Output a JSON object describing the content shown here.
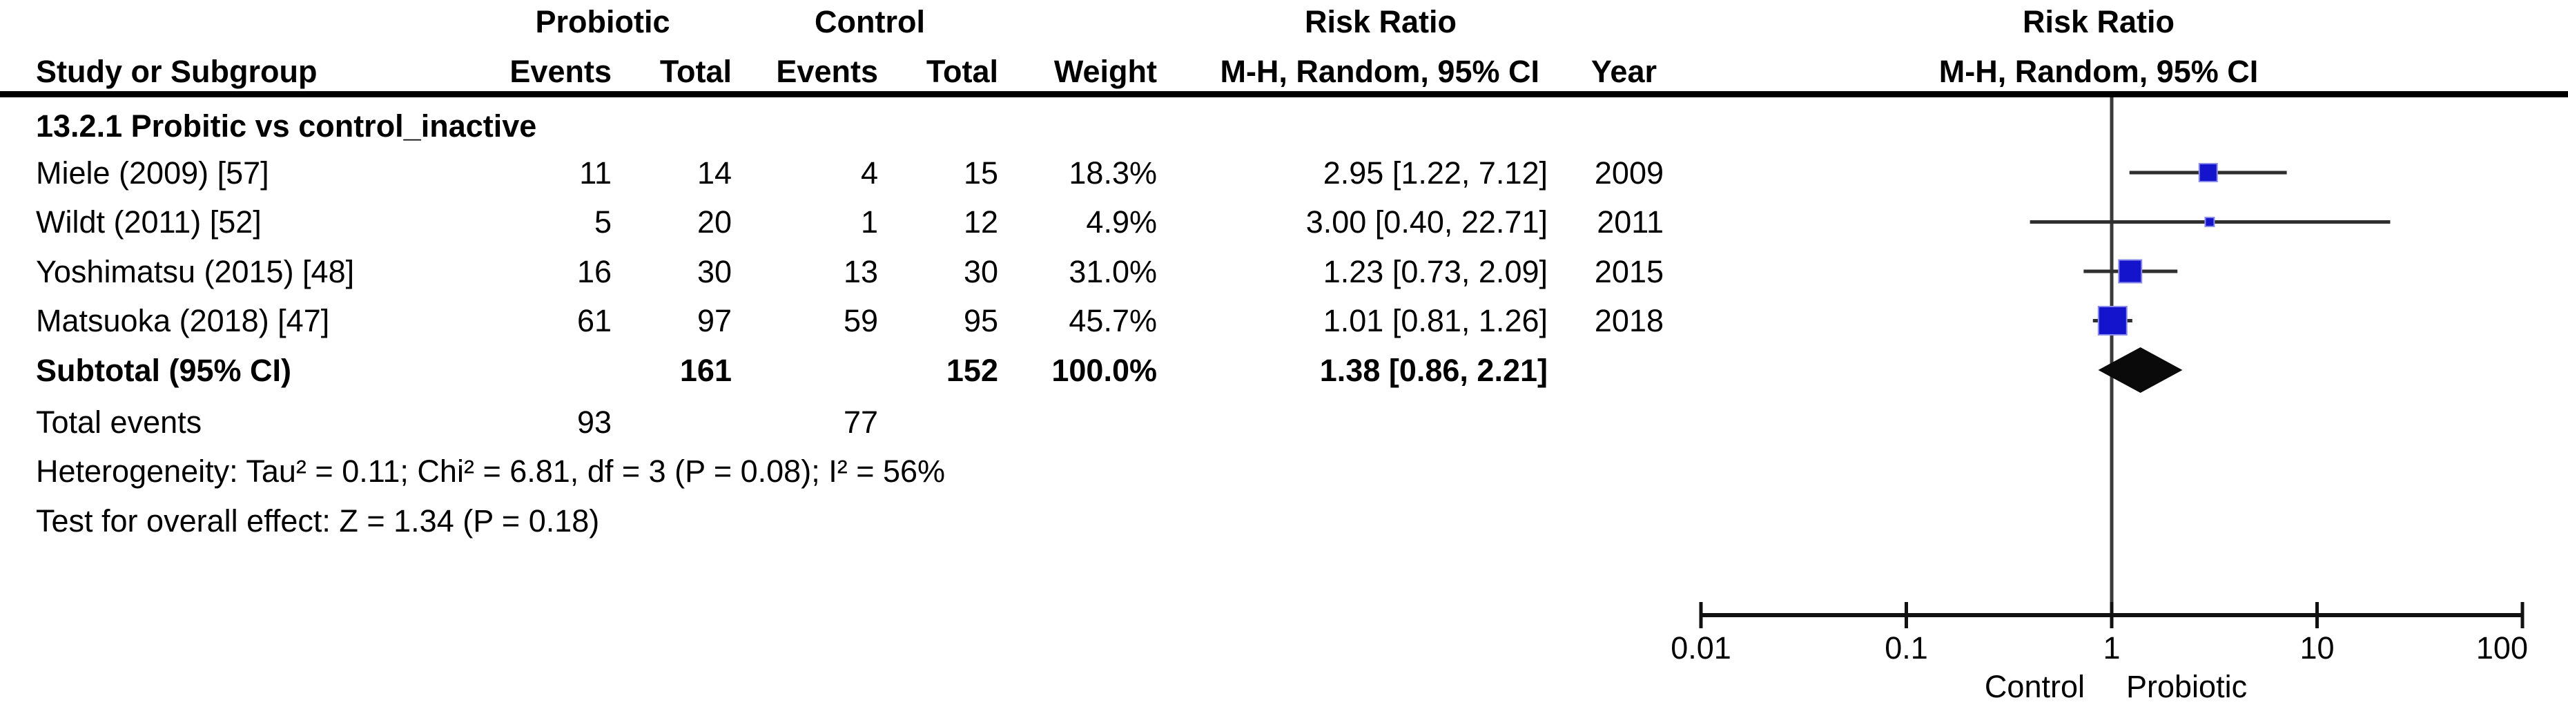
{
  "colors": {
    "marker_blue": "#1414CC",
    "marker_blue_edge": "#8c8cea",
    "ci_line": "#2f2f2f",
    "diamond_black": "#0a0a0a",
    "axis_black": "#111111",
    "null_line_gray": "#3a3a3a"
  },
  "header": {
    "group_probiotic": "Probiotic",
    "group_control": "Control",
    "risk_ratio_left": "Risk Ratio",
    "risk_ratio_right": "Risk Ratio",
    "study": "Study or Subgroup",
    "events1": "Events",
    "total1": "Total",
    "events2": "Events",
    "total2": "Total",
    "weight": "Weight",
    "mh_ci_left": "M-H, Random, 95% CI",
    "year": "Year",
    "mh_ci_right": "M-H, Random, 95% CI"
  },
  "subgroup_heading": "13.2.1 Probitic vs control_inactive",
  "rows": [
    {
      "name": "Miele (2009) [57]",
      "events1": "11",
      "total1": "14",
      "events2": "4",
      "total2": "15",
      "weight": "18.3%",
      "ci_text": "2.95 [1.22, 7.12]",
      "year": "2009"
    },
    {
      "name": "Wildt (2011) [52]",
      "events1": "5",
      "total1": "20",
      "events2": "1",
      "total2": "12",
      "weight": "4.9%",
      "ci_text": "3.00 [0.40, 22.71]",
      "year": "2011"
    },
    {
      "name": "Yoshimatsu (2015) [48]",
      "events1": "16",
      "total1": "30",
      "events2": "13",
      "total2": "30",
      "weight": "31.0%",
      "ci_text": "1.23 [0.73, 2.09]",
      "year": "2015"
    },
    {
      "name": "Matsuoka (2018) [47]",
      "events1": "61",
      "total1": "97",
      "events2": "59",
      "total2": "95",
      "weight": "45.7%",
      "ci_text": "1.01 [0.81, 1.26]",
      "year": "2018"
    }
  ],
  "subtotal_row": {
    "label": "Subtotal (95% CI)",
    "total1": "161",
    "total2": "152",
    "weight": "100.0%",
    "ci_text": "1.38 [0.86, 2.21]"
  },
  "total_events_row": {
    "label": "Total events",
    "events1": "93",
    "events2": "77"
  },
  "heterogeneity_text": "Heterogeneity: Tau² = 0.11; Chi² = 6.81, df = 3 (P = 0.08); I² = 56%",
  "overall_effect_text": "Test for overall effect: Z = 1.34 (P = 0.18)",
  "axis": {
    "tick_labels": [
      "0.01",
      "0.1",
      "1",
      "10",
      "100"
    ],
    "label_left": "Control",
    "label_right": "Probiotic"
  },
  "chart_data": {
    "type": "forest",
    "effect_measure": "Risk Ratio",
    "method": "M-H, Random, 95% CI",
    "x_scale": "log10",
    "x_ticks": [
      0.01,
      0.1,
      1,
      10,
      100
    ],
    "x_axis_labels": {
      "left": "Control",
      "right": "Probiotic"
    },
    "subgroup": "13.2.1 Probitic vs control_inactive",
    "studies": [
      {
        "study": "Miele (2009) [57]",
        "probiotic_events": 11,
        "probiotic_total": 14,
        "control_events": 4,
        "control_total": 15,
        "weight_pct": 18.3,
        "rr": 2.95,
        "ci_low": 1.22,
        "ci_high": 7.12,
        "year": 2009
      },
      {
        "study": "Wildt (2011) [52]",
        "probiotic_events": 5,
        "probiotic_total": 20,
        "control_events": 1,
        "control_total": 12,
        "weight_pct": 4.9,
        "rr": 3.0,
        "ci_low": 0.4,
        "ci_high": 22.71,
        "year": 2011
      },
      {
        "study": "Yoshimatsu (2015) [48]",
        "probiotic_events": 16,
        "probiotic_total": 30,
        "control_events": 13,
        "control_total": 30,
        "weight_pct": 31.0,
        "rr": 1.23,
        "ci_low": 0.73,
        "ci_high": 2.09,
        "year": 2015
      },
      {
        "study": "Matsuoka (2018) [47]",
        "probiotic_events": 61,
        "probiotic_total": 97,
        "control_events": 59,
        "control_total": 95,
        "weight_pct": 45.7,
        "rr": 1.01,
        "ci_low": 0.81,
        "ci_high": 1.26,
        "year": 2018
      }
    ],
    "subtotal": {
      "label": "Subtotal (95% CI)",
      "probiotic_total": 161,
      "control_total": 152,
      "weight_pct": 100.0,
      "rr": 1.38,
      "ci_low": 0.86,
      "ci_high": 2.21
    },
    "total_events": {
      "probiotic": 93,
      "control": 77
    },
    "heterogeneity": {
      "tau2": 0.11,
      "chi2": 6.81,
      "df": 3,
      "p": 0.08,
      "i2_pct": 56
    },
    "overall_effect": {
      "z": 1.34,
      "p": 0.18
    }
  }
}
